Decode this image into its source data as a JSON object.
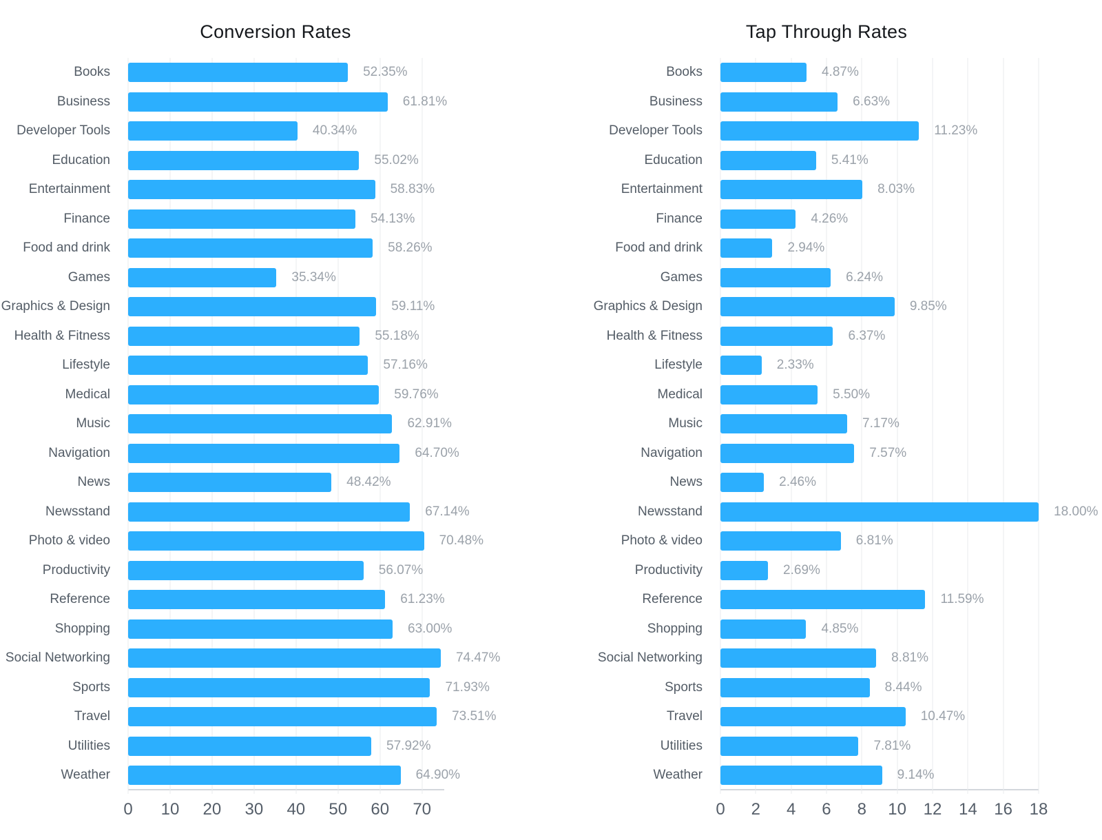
{
  "colors": {
    "bar": "#2CAFFE",
    "grid": "#E9EBEE",
    "axis": "#D3D7DC",
    "title": "#15181C",
    "cat": "#535C66",
    "val": "#9BA2AA",
    "tick": "#555E69"
  },
  "chart_data": [
    {
      "type": "bar",
      "orientation": "horizontal",
      "title": "Conversion Rates",
      "categories": [
        "Books",
        "Business",
        "Developer Tools",
        "Education",
        "Entertainment",
        "Finance",
        "Food and drink",
        "Games",
        "Graphics & Design",
        "Health & Fitness",
        "Lifestyle",
        "Medical",
        "Music",
        "Navigation",
        "News",
        "Newsstand",
        "Photo & video",
        "Productivity",
        "Reference",
        "Shopping",
        "Social Networking",
        "Sports",
        "Travel",
        "Utilities",
        "Weather"
      ],
      "values": [
        52.35,
        61.81,
        40.34,
        55.02,
        58.83,
        54.13,
        58.26,
        35.34,
        59.11,
        55.18,
        57.16,
        59.76,
        62.91,
        64.7,
        48.42,
        67.14,
        70.48,
        56.07,
        61.23,
        63.0,
        74.47,
        71.93,
        73.51,
        57.92,
        64.9
      ],
      "value_labels": [
        "52.35%",
        "61.81%",
        "40.34%",
        "55.02%",
        "58.83%",
        "54.13%",
        "58.26%",
        "35.34%",
        "59.11%",
        "55.18%",
        "57.16%",
        "59.76%",
        "62.91%",
        "64.70%",
        "48.42%",
        "67.14%",
        "70.48%",
        "56.07%",
        "61.23%",
        "63.00%",
        "74.47%",
        "71.93%",
        "73.51%",
        "57.92%",
        "64.90%"
      ],
      "xlim": [
        0,
        75.3
      ],
      "xticks": [
        0,
        10,
        20,
        30,
        40,
        50,
        60,
        70
      ],
      "grid": true,
      "legend": "none",
      "value_label_position": "right-of-bar"
    },
    {
      "type": "bar",
      "orientation": "horizontal",
      "title": "Tap Through Rates",
      "categories": [
        "Books",
        "Business",
        "Developer Tools",
        "Education",
        "Entertainment",
        "Finance",
        "Food and drink",
        "Games",
        "Graphics & Design",
        "Health & Fitness",
        "Lifestyle",
        "Medical",
        "Music",
        "Navigation",
        "News",
        "Newsstand",
        "Photo & video",
        "Productivity",
        "Reference",
        "Shopping",
        "Social Networking",
        "Sports",
        "Travel",
        "Utilities",
        "Weather"
      ],
      "values": [
        4.87,
        6.63,
        11.23,
        5.41,
        8.03,
        4.26,
        2.94,
        6.24,
        9.85,
        6.37,
        2.33,
        5.5,
        7.17,
        7.57,
        2.46,
        18.0,
        6.81,
        2.69,
        11.59,
        4.85,
        8.81,
        8.44,
        10.47,
        7.81,
        9.14
      ],
      "value_labels": [
        "4.87%",
        "6.63%",
        "11.23%",
        "5.41%",
        "8.03%",
        "4.26%",
        "2.94%",
        "6.24%",
        "9.85%",
        "6.37%",
        "2.33%",
        "5.50%",
        "7.17%",
        "7.57%",
        "2.46%",
        "18.00%",
        "6.81%",
        "2.69%",
        "11.59%",
        "4.85%",
        "8.81%",
        "8.44%",
        "10.47%",
        "7.81%",
        "9.14%"
      ],
      "xlim": [
        0,
        18
      ],
      "xticks": [
        0,
        2,
        4,
        6,
        8,
        10,
        12,
        14,
        16,
        18
      ],
      "grid": true,
      "legend": "none",
      "value_label_position": "right-of-bar"
    }
  ]
}
